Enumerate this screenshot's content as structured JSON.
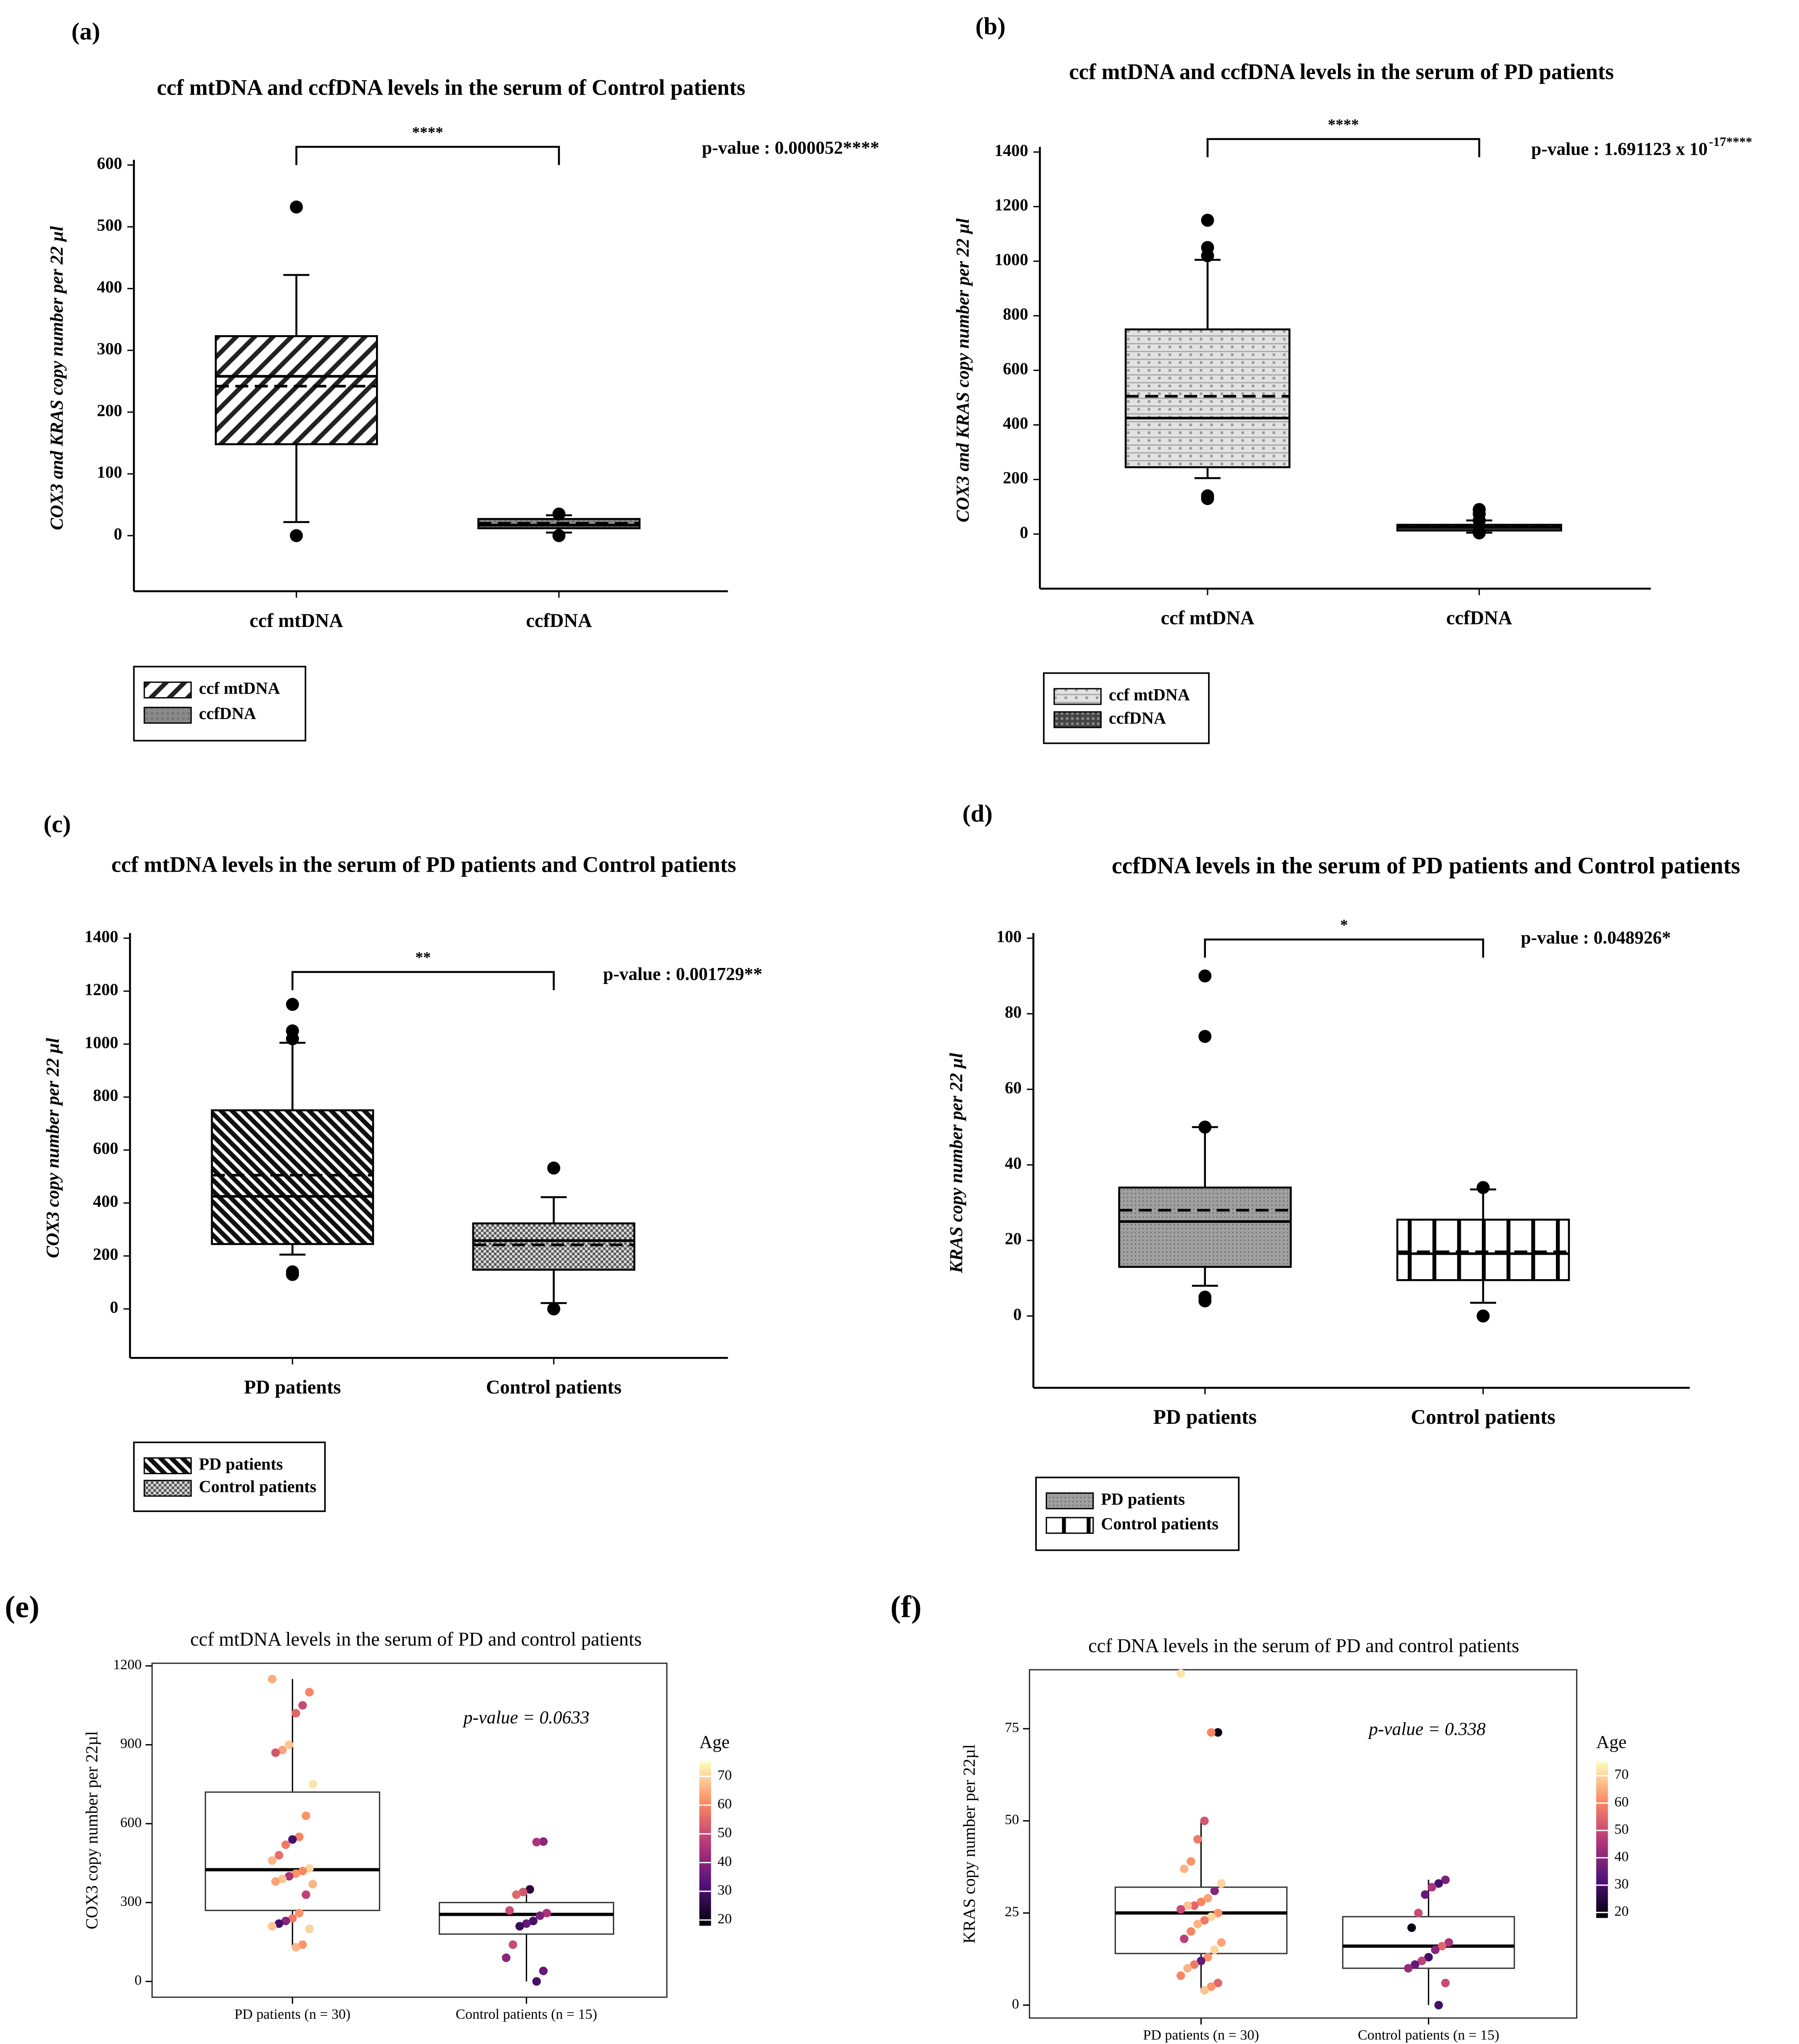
{
  "chart_data": [
    {
      "type": "box",
      "panel": "(a)",
      "title": "ccf mtDNA and ccfDNA levels in the serum of Control patients",
      "y_label": "COX3 and KRAS copy number per 22 µl",
      "categories": [
        "ccf mtDNA",
        "ccfDNA"
      ],
      "series": [
        {
          "name": "ccf mtDNA",
          "pattern": "diagonal"
        },
        {
          "name": "ccfDNA",
          "pattern": "gray"
        }
      ],
      "boxes": [
        {
          "low": 22,
          "q1": 148,
          "median": 258,
          "mean": 242,
          "q3": 323,
          "high": 422,
          "outliers": [
            532,
            0
          ]
        },
        {
          "low": 5,
          "q1": 12,
          "median": 17,
          "mean": 20,
          "q3": 27,
          "high": 33,
          "outliers": [
            35,
            0
          ]
        }
      ],
      "ylim": [
        -90,
        600
      ],
      "yticks": [
        0,
        100,
        200,
        300,
        400,
        500,
        600
      ],
      "significance": "****",
      "annotation": "p-value : 0.000052****"
    },
    {
      "type": "box",
      "panel": "(b)",
      "title": "ccf mtDNA and ccfDNA levels in the serum of PD patients",
      "y_label": "COX3 and KRAS copy number per 22 µl",
      "categories": [
        "ccf mtDNA",
        "ccfDNA"
      ],
      "series": [
        {
          "name": "ccf mtDNA",
          "pattern": "dots"
        },
        {
          "name": "ccfDNA",
          "pattern": "dense"
        }
      ],
      "boxes": [
        {
          "low": 205,
          "q1": 245,
          "median": 425,
          "mean": 505,
          "q3": 750,
          "high": 1005,
          "outliers": [
            1150,
            1050,
            1020,
            140,
            130
          ]
        },
        {
          "low": 5,
          "q1": 13,
          "median": 25,
          "mean": 28,
          "q3": 34,
          "high": 50,
          "outliers": [
            90,
            74,
            50,
            5,
            4
          ]
        }
      ],
      "ylim": [
        -200,
        1400
      ],
      "yticks": [
        0,
        200,
        400,
        600,
        800,
        1000,
        1200,
        1400
      ],
      "significance": "****",
      "annotation": "p-value : 1.691123 x 10",
      "annotation_superscript": "-17****"
    },
    {
      "type": "box",
      "panel": "(c)",
      "title": "ccf mtDNA levels in the serum of PD patients and Control patients",
      "y_label": "COX3 copy number per 22 µl",
      "categories": [
        "PD patients",
        "Control patients"
      ],
      "series": [
        {
          "name": "PD patients",
          "pattern": "backslash"
        },
        {
          "name": "Control patients",
          "pattern": "checker"
        }
      ],
      "boxes": [
        {
          "low": 205,
          "q1": 245,
          "median": 425,
          "mean": 505,
          "q3": 750,
          "high": 1005,
          "outliers": [
            1150,
            1050,
            1020,
            140,
            130
          ]
        },
        {
          "low": 22,
          "q1": 148,
          "median": 258,
          "mean": 242,
          "q3": 323,
          "high": 422,
          "outliers": [
            532,
            0
          ]
        }
      ],
      "ylim": [
        -185,
        1400
      ],
      "yticks": [
        0,
        200,
        400,
        600,
        800,
        1000,
        1200,
        1400
      ],
      "significance": "**",
      "annotation": "p-value : 0.001729**"
    },
    {
      "type": "box",
      "panel": "(d)",
      "title": "ccfDNA levels in the serum of PD patients and Control patients",
      "y_label": "KRAS copy number per 22 µl",
      "categories": [
        "PD patients",
        "Control patients"
      ],
      "series": [
        {
          "name": "PD patients",
          "pattern": "graytex"
        },
        {
          "name": "Control patients",
          "pattern": "vertical"
        }
      ],
      "boxes": [
        {
          "low": 8,
          "q1": 13,
          "median": 25,
          "mean": 28,
          "q3": 34,
          "high": 50,
          "outliers": [
            90,
            74,
            50,
            5,
            4
          ]
        },
        {
          "low": 3.5,
          "q1": 9.5,
          "median": 16.5,
          "mean": 17,
          "q3": 25.5,
          "high": 33.5,
          "outliers": [
            34,
            0
          ]
        }
      ],
      "ylim": [
        -19,
        100
      ],
      "yticks": [
        0,
        20,
        40,
        60,
        80,
        100
      ],
      "significance": "*",
      "annotation": "p-value : 0.048926*"
    },
    {
      "type": "box_jitter",
      "panel": "(e)",
      "title": "ccf mtDNA levels in the serum of PD and control patients",
      "y_label": "COX3 copy number per 22µl",
      "categories": [
        "PD patients (n = 30)",
        "Control patients (n = 15)"
      ],
      "boxes": [
        {
          "low": 130,
          "q1": 270,
          "median": 425,
          "q3": 720,
          "high": 1150
        },
        {
          "low": 0,
          "q1": 180,
          "median": 255,
          "q3": 300,
          "high": 350
        }
      ],
      "points": [
        {
          "values": [
            1150,
            1100,
            1050,
            1020,
            900,
            880,
            870,
            750,
            630,
            550,
            540,
            520,
            480,
            460,
            430,
            420,
            410,
            400,
            390,
            380,
            370,
            330,
            260,
            240,
            230,
            220,
            210,
            200,
            140,
            130
          ],
          "ages": [
            65,
            60,
            50,
            55,
            68,
            64,
            52,
            72,
            62,
            60,
            30,
            58,
            56,
            66,
            70,
            60,
            62,
            45,
            68,
            64,
            66,
            48,
            62,
            58,
            40,
            30,
            68,
            70,
            62,
            66
          ]
        },
        {
          "values": [
            532,
            530,
            350,
            340,
            330,
            270,
            260,
            250,
            230,
            220,
            210,
            140,
            90,
            40,
            0
          ],
          "ages": [
            40,
            45,
            25,
            52,
            55,
            50,
            45,
            38,
            30,
            35,
            28,
            50,
            40,
            35,
            30
          ]
        }
      ],
      "ylim": [
        -60,
        1210
      ],
      "yticks": [
        0,
        300,
        600,
        900,
        1200
      ],
      "annotation": "p-value = 0.0633",
      "colorbar": {
        "title": "Age",
        "lim": [
          18,
          75
        ],
        "ticks": [
          20,
          30,
          40,
          50,
          60,
          70
        ]
      }
    },
    {
      "type": "box_jitter",
      "panel": "(f)",
      "title": "ccf DNA levels in the serum of PD and control patients",
      "y_label": "KRAS copy number per 22µl",
      "categories": [
        "PD patients (n = 30)",
        "Control patients (n = 15)"
      ],
      "boxes": [
        {
          "low": 4,
          "q1": 14,
          "median": 25,
          "q3": 32,
          "high": 50
        },
        {
          "low": 0,
          "q1": 10,
          "median": 16,
          "q3": 24,
          "high": 34
        }
      ],
      "points": [
        {
          "values": [
            90,
            74,
            74,
            50,
            45,
            39,
            37,
            33,
            31,
            29,
            28,
            27,
            27,
            26,
            25,
            24,
            23,
            22,
            20,
            18,
            17,
            15,
            13,
            12,
            11,
            10,
            8,
            6,
            5,
            4
          ],
          "ages": [
            72,
            20,
            60,
            52,
            58,
            62,
            66,
            70,
            40,
            64,
            60,
            55,
            68,
            50,
            62,
            70,
            58,
            66,
            60,
            48,
            64,
            70,
            62,
            35,
            58,
            66,
            60,
            55,
            62,
            68
          ]
        },
        {
          "values": [
            34,
            33,
            32,
            30,
            25,
            21,
            17,
            16,
            15,
            13,
            12,
            11,
            10,
            6,
            0
          ],
          "ages": [
            38,
            30,
            45,
            35,
            50,
            20,
            45,
            55,
            40,
            30,
            48,
            35,
            42,
            50,
            30
          ]
        }
      ],
      "ylim": [
        -3.5,
        91
      ],
      "yticks": [
        0,
        25,
        50,
        75
      ],
      "annotation": "p-value = 0.338",
      "colorbar": {
        "title": "Age",
        "lim": [
          18,
          75
        ],
        "ticks": [
          20,
          30,
          40,
          50,
          60,
          70
        ]
      }
    }
  ]
}
